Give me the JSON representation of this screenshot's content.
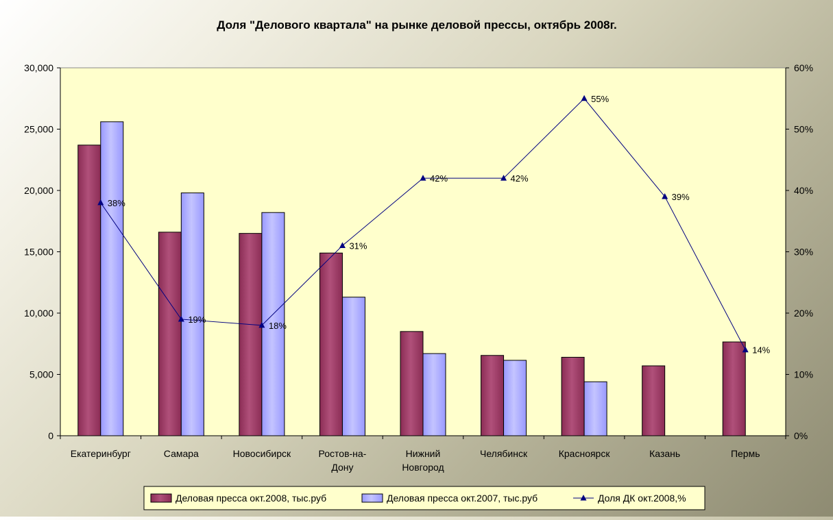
{
  "chart_data": {
    "type": "bar",
    "title": "Доля  \"Делового квартала\" на рынке деловой прессы, октябрь 2008г.",
    "categories": [
      [
        "Екатеринбург"
      ],
      [
        "Самара"
      ],
      [
        "Новосибирск"
      ],
      [
        "Ростов-на-",
        "Дону"
      ],
      [
        "Нижний",
        "Новгород"
      ],
      [
        "Челябинск"
      ],
      [
        "Красноярск"
      ],
      [
        "Казань"
      ],
      [
        "Пермь"
      ]
    ],
    "series": [
      {
        "name": "Деловая пресса окт.2008, тыс.руб",
        "type": "bar",
        "axis": "left",
        "color": "#8B2D55",
        "values": [
          23700,
          16600,
          16500,
          14900,
          8500,
          6550,
          6400,
          5700,
          7650
        ]
      },
      {
        "name": "Деловая пресса окт.2007, тыс.руб",
        "type": "bar",
        "axis": "left",
        "color": "#9999FF",
        "values": [
          25600,
          19800,
          18200,
          11300,
          6700,
          6150,
          4400,
          null,
          null
        ]
      },
      {
        "name": "Доля ДК окт.2008,%",
        "type": "line",
        "axis": "right",
        "color": "#000080",
        "values": [
          38,
          19,
          18,
          31,
          42,
          42,
          55,
          39,
          14
        ],
        "labels": [
          "38%",
          "19%",
          "18%",
          "31%",
          "42%",
          "42%",
          "55%",
          "39%",
          "14%"
        ]
      }
    ],
    "y_left": {
      "min": 0,
      "max": 30000,
      "ticks": [
        0,
        5000,
        10000,
        15000,
        20000,
        25000,
        30000
      ],
      "tick_labels": [
        "0",
        "5,000",
        "10,000",
        "15,000",
        "20,000",
        "25,000",
        "30,000"
      ]
    },
    "y_right": {
      "min": 0,
      "max": 60,
      "ticks": [
        0,
        10,
        20,
        30,
        40,
        50,
        60
      ],
      "tick_labels": [
        "0%",
        "10%",
        "20%",
        "30%",
        "40%",
        "50%",
        "60%"
      ]
    },
    "plot_background": "#FFFFCC",
    "grid": false,
    "legend_position": "bottom"
  }
}
